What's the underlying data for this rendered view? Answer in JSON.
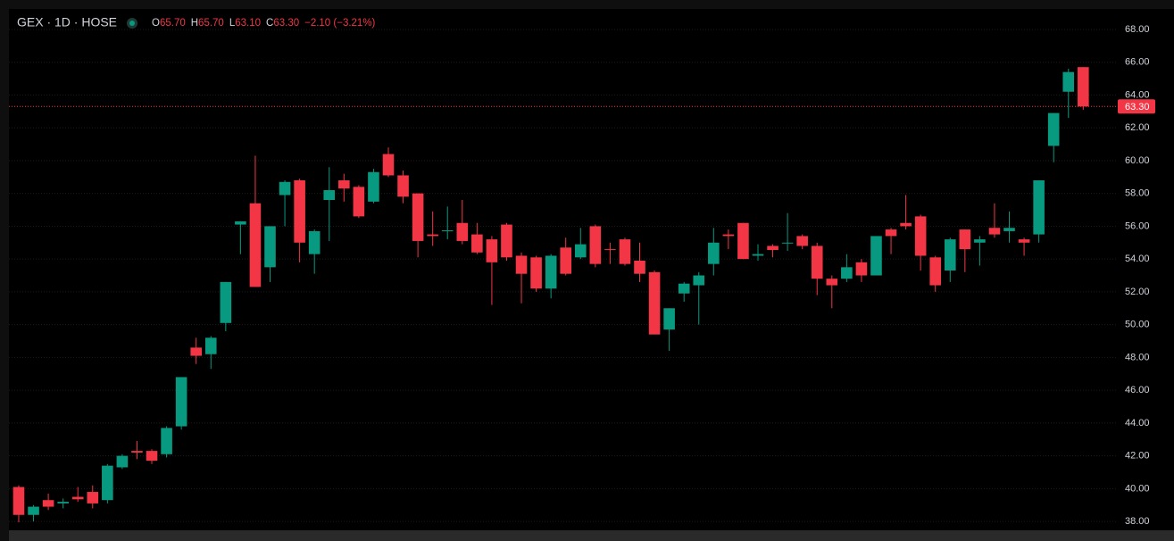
{
  "chart_data": {
    "type": "candlestick",
    "header": {
      "symbol": "GEX · 1D · HOSE",
      "ohlc": [
        {
          "key": "O",
          "value": "65.70"
        },
        {
          "key": "H",
          "value": "65.70"
        },
        {
          "key": "L",
          "value": "63.10"
        },
        {
          "key": "C",
          "value": "63.30"
        }
      ],
      "change": "−2.10 (−3.21%)"
    },
    "up_color": "#089981",
    "down_color": "#f23645",
    "open": [
      40.1,
      38.4,
      39.3,
      39.1,
      39.5,
      39.8,
      39.3,
      41.3,
      42.3,
      42.3,
      42.1,
      43.8,
      48.6,
      48.2,
      50.1,
      56.1,
      57.4,
      53.5,
      57.9,
      58.8,
      54.3,
      57.6,
      58.8,
      58.4,
      57.5,
      60.4,
      59.1,
      58.0,
      55.5,
      55.7,
      56.2,
      55.5,
      55.2,
      56.1,
      54.2,
      54.1,
      52.2,
      54.7,
      54.1,
      56.0,
      54.6,
      55.2,
      53.9,
      53.2,
      49.7,
      51.9,
      52.4,
      53.7,
      55.5,
      56.2,
      54.2,
      54.8,
      54.95,
      55.4,
      54.8,
      52.8,
      52.8,
      53.8,
      53.0,
      55.8,
      56.2,
      56.6,
      54.1,
      53.3,
      55.8,
      55.0,
      55.9,
      55.7,
      55.2,
      55.5,
      60.9,
      64.2,
      65.7
    ],
    "high": [
      40.2,
      39.0,
      39.7,
      39.4,
      40.1,
      40.2,
      41.5,
      42.1,
      42.9,
      42.4,
      43.8,
      46.8,
      49.2,
      49.3,
      52.6,
      56.3,
      60.3,
      56.0,
      58.8,
      58.9,
      55.8,
      59.6,
      59.2,
      58.5,
      59.5,
      60.8,
      59.4,
      58.0,
      56.9,
      57.2,
      57.6,
      56.2,
      55.4,
      56.2,
      54.4,
      54.2,
      54.3,
      55.3,
      55.9,
      56.1,
      55.0,
      55.3,
      55.0,
      53.3,
      51.0,
      52.6,
      53.2,
      55.9,
      55.8,
      56.2,
      54.9,
      54.9,
      56.8,
      55.5,
      55.0,
      53.0,
      54.3,
      54.0,
      55.4,
      55.9,
      57.9,
      56.7,
      54.2,
      55.3,
      55.8,
      55.4,
      57.4,
      56.9,
      55.3,
      58.8,
      62.9,
      65.6,
      65.7
    ],
    "low": [
      37.95,
      38.0,
      38.7,
      38.8,
      39.2,
      38.8,
      39.1,
      41.2,
      41.8,
      41.5,
      41.9,
      43.6,
      47.6,
      47.3,
      49.6,
      54.3,
      52.3,
      52.6,
      56.0,
      53.8,
      53.1,
      55.1,
      57.5,
      56.5,
      57.4,
      59.0,
      57.4,
      54.1,
      54.8,
      55.2,
      54.9,
      54.3,
      51.2,
      53.9,
      51.3,
      52.0,
      51.6,
      53.0,
      54.0,
      53.5,
      53.7,
      53.6,
      52.6,
      49.4,
      48.4,
      51.4,
      50.0,
      53.0,
      54.6,
      54.0,
      53.9,
      54.1,
      54.5,
      54.6,
      51.8,
      51.0,
      52.6,
      52.6,
      53.0,
      54.3,
      55.8,
      53.3,
      52.0,
      52.6,
      53.2,
      53.6,
      55.3,
      55.0,
      54.2,
      55.0,
      59.9,
      62.6,
      63.1
    ],
    "close": [
      38.4,
      38.9,
      38.9,
      39.2,
      39.35,
      39.1,
      41.4,
      42.0,
      42.2,
      41.7,
      43.7,
      46.8,
      48.1,
      49.2,
      52.6,
      56.3,
      52.3,
      56.0,
      58.7,
      55.0,
      55.7,
      58.2,
      58.3,
      56.6,
      59.3,
      59.1,
      57.8,
      55.1,
      55.4,
      55.75,
      55.1,
      54.4,
      53.8,
      54.1,
      53.1,
      52.2,
      54.2,
      53.1,
      54.9,
      53.7,
      54.55,
      53.7,
      53.1,
      49.4,
      51.0,
      52.5,
      53.0,
      55.0,
      55.4,
      54.0,
      54.3,
      54.55,
      55.0,
      54.8,
      52.8,
      52.4,
      53.5,
      53.0,
      55.4,
      55.4,
      56.0,
      54.2,
      52.4,
      55.2,
      54.6,
      55.2,
      55.5,
      55.9,
      55.0,
      58.8,
      62.9,
      65.4,
      63.3
    ],
    "ylim": [
      37.57,
      69.14
    ],
    "yticks": [
      {
        "value": 38,
        "label": "38.00"
      },
      {
        "value": 40,
        "label": "40.00"
      },
      {
        "value": 42,
        "label": "42.00"
      },
      {
        "value": 44,
        "label": "44.00"
      },
      {
        "value": 46,
        "label": "46.00"
      },
      {
        "value": 48,
        "label": "48.00"
      },
      {
        "value": 50,
        "label": "50.00"
      },
      {
        "value": 52,
        "label": "52.00"
      },
      {
        "value": 54,
        "label": "54.00"
      },
      {
        "value": 56,
        "label": "56.00"
      },
      {
        "value": 58,
        "label": "58.00"
      },
      {
        "value": 60,
        "label": "60.00"
      },
      {
        "value": 62,
        "label": "62.00"
      },
      {
        "value": 64,
        "label": "64.00"
      },
      {
        "value": 66,
        "label": "66.00"
      },
      {
        "value": 68,
        "label": "68.00"
      }
    ],
    "grid": true,
    "last_price": {
      "value": 63.3,
      "label": "63.30"
    }
  }
}
